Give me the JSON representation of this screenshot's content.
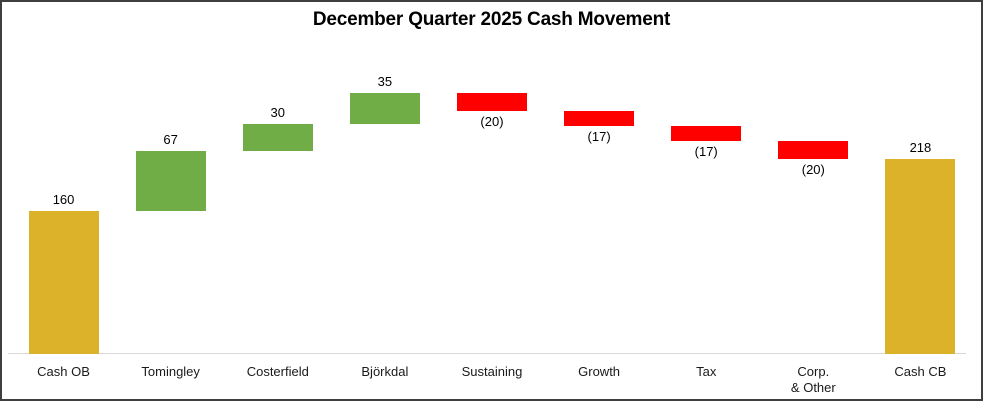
{
  "chart_data": {
    "type": "bar",
    "subtype": "waterfall",
    "title": "December Quarter 2025 Cash Movement",
    "xlabel": "",
    "ylabel": "",
    "ylim": [
      0,
      350
    ],
    "grid": false,
    "legend": false,
    "categories": [
      "Cash OB",
      "Tomingley",
      "Costerfield",
      "Björkdal",
      "Sustaining",
      "Growth",
      "Tax",
      "Corp. & Other",
      "Cash CB"
    ],
    "bars": [
      {
        "label": "Cash OB",
        "label_lines": [
          "Cash OB"
        ],
        "value": 160,
        "display": "160",
        "start": 0,
        "end": 160,
        "role": "total"
      },
      {
        "label": "Tomingley",
        "label_lines": [
          "Tomingley"
        ],
        "value": 67,
        "display": "67",
        "start": 160,
        "end": 227,
        "role": "increase"
      },
      {
        "label": "Costerfield",
        "label_lines": [
          "Costerfield"
        ],
        "value": 30,
        "display": "30",
        "start": 227,
        "end": 257,
        "role": "increase"
      },
      {
        "label": "Björkdal",
        "label_lines": [
          "Björkdal"
        ],
        "value": 35,
        "display": "35",
        "start": 257,
        "end": 292,
        "role": "increase"
      },
      {
        "label": "Sustaining",
        "label_lines": [
          "Sustaining"
        ],
        "value": -20,
        "display": "(20)",
        "start": 292,
        "end": 272,
        "role": "decrease"
      },
      {
        "label": "Growth",
        "label_lines": [
          "Growth"
        ],
        "value": -17,
        "display": "(17)",
        "start": 272,
        "end": 255,
        "role": "decrease"
      },
      {
        "label": "Tax",
        "label_lines": [
          "Tax"
        ],
        "value": -17,
        "display": "(17)",
        "start": 255,
        "end": 238,
        "role": "decrease"
      },
      {
        "label": "Corp. & Other",
        "label_lines": [
          "Corp.",
          "& Other"
        ],
        "value": -20,
        "display": "(20)",
        "start": 238,
        "end": 218,
        "role": "decrease"
      },
      {
        "label": "Cash CB",
        "label_lines": [
          "Cash CB"
        ],
        "value": 218,
        "display": "218",
        "start": 0,
        "end": 218,
        "role": "total"
      }
    ],
    "colors": {
      "total": "#dbb22a",
      "increase": "#70ad47",
      "decrease": "#ff0000",
      "axis_line": "#d9d9d9",
      "frame_border": "#3f3f3f",
      "text": "#000000"
    }
  }
}
